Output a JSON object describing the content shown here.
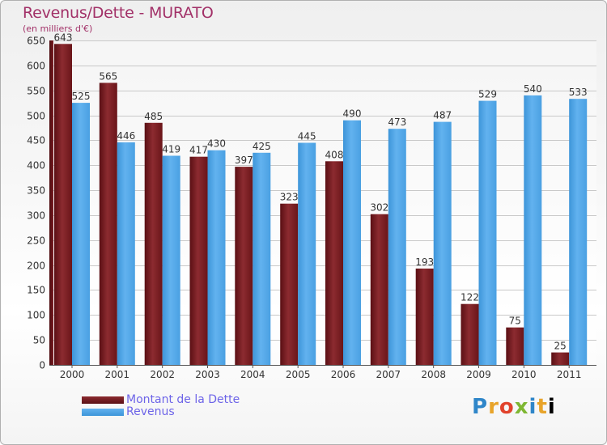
{
  "chart_data": {
    "type": "bar",
    "title": "Revenus/Dette - MURATO",
    "subtitle": "(en milliers d'€)",
    "categories": [
      "2000",
      "2001",
      "2002",
      "2003",
      "2004",
      "2005",
      "2006",
      "2007",
      "2008",
      "2009",
      "2010",
      "2011"
    ],
    "series": [
      {
        "name": "Montant de la Dette",
        "values": [
          643,
          565,
          485,
          417,
          397,
          323,
          408,
          302,
          193,
          122,
          75,
          25
        ],
        "color": "#7a1c22"
      },
      {
        "name": "Revenus",
        "values": [
          525,
          446,
          419,
          430,
          425,
          445,
          490,
          473,
          487,
          529,
          540,
          533
        ],
        "color": "#4fa3e6"
      }
    ],
    "ylim": [
      0,
      650
    ],
    "yticks": [
      0,
      50,
      100,
      150,
      200,
      250,
      300,
      350,
      400,
      450,
      500,
      550,
      600,
      650
    ],
    "grid": true,
    "legend": "bottom-left"
  },
  "logo": [
    "P",
    "r",
    "o",
    "x",
    "i",
    "t",
    "i"
  ]
}
